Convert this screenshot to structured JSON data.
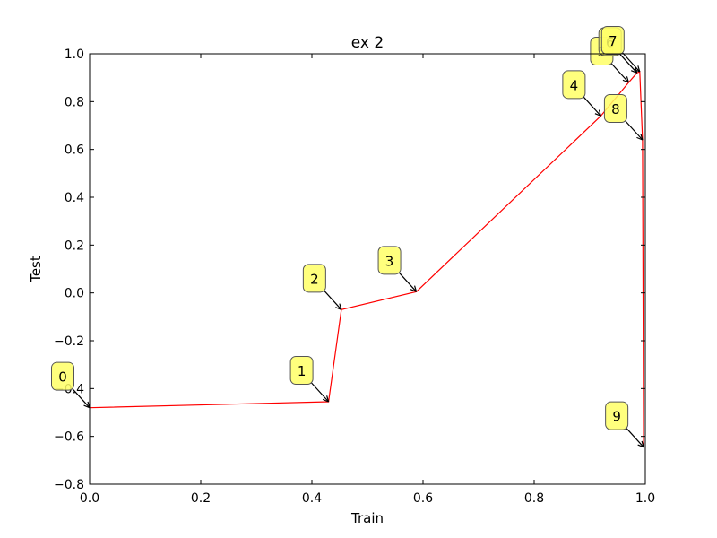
{
  "chart_data": {
    "type": "line",
    "title": "ex 2",
    "xlabel": "Train",
    "ylabel": "Test",
    "xlim": [
      0.0,
      1.0
    ],
    "ylim": [
      -0.8,
      1.0
    ],
    "xticks": [
      "0.0",
      "0.2",
      "0.4",
      "0.6",
      "0.8",
      "1.0"
    ],
    "yticks": [
      "−0.8",
      "−0.6",
      "−0.4",
      "−0.2",
      "0.0",
      "0.2",
      "0.4",
      "0.6",
      "0.8",
      "1.0"
    ],
    "line_color": "#ff0000",
    "annotation_box_color": "#ffff66",
    "series": [
      {
        "points": [
          {
            "label": "0",
            "x": 0.0,
            "y": -0.48
          },
          {
            "label": "1",
            "x": 0.43,
            "y": -0.455
          },
          {
            "label": "2",
            "x": 0.453,
            "y": -0.07
          },
          {
            "label": "3",
            "x": 0.588,
            "y": 0.005
          },
          {
            "label": "4",
            "x": 0.92,
            "y": 0.74
          },
          {
            "label": "5",
            "x": 0.97,
            "y": 0.88
          },
          {
            "label": "6",
            "x": 0.985,
            "y": 0.92
          },
          {
            "label": "7",
            "x": 0.99,
            "y": 0.925
          },
          {
            "label": "8",
            "x": 0.995,
            "y": 0.64
          },
          {
            "label": "9",
            "x": 0.997,
            "y": -0.645
          }
        ]
      }
    ]
  }
}
